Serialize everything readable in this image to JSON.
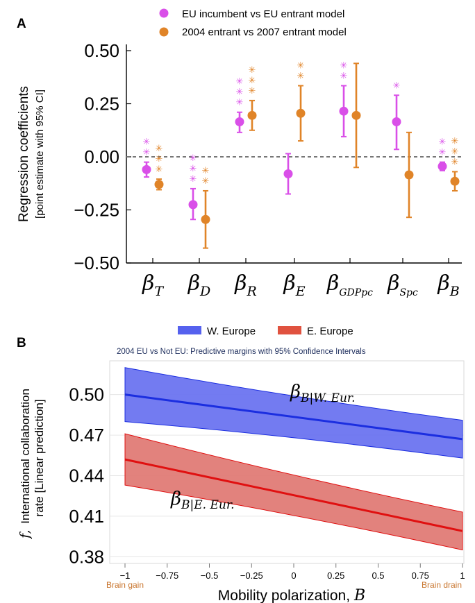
{
  "colors": {
    "magenta": "#d94fe8",
    "orange": "#e08428",
    "blue_band": "#6b74f0",
    "blue_line": "#1b2ee0",
    "red_band": "#e07b76",
    "red_line": "#e01010",
    "brain_label": "#c8742c"
  },
  "chart_data": [
    {
      "type": "scatter",
      "panel": "A",
      "ylabel_line1": "Regression coefficients",
      "ylabel_line2": "[point estimate with 95% CI]",
      "ylim": [
        -0.5,
        0.5
      ],
      "yticks": [
        "0.50",
        "0.25",
        "0.00",
        "−0.25",
        "−0.50"
      ],
      "reference_line": 0,
      "categories": [
        {
          "base": "β",
          "sub": "T"
        },
        {
          "base": "β",
          "sub": "D"
        },
        {
          "base": "β",
          "sub": "R"
        },
        {
          "base": "β",
          "sub": "E"
        },
        {
          "base": "β",
          "sub": "GDPpc"
        },
        {
          "base": "β",
          "sub": "Spc"
        },
        {
          "base": "β",
          "sub": "B"
        }
      ],
      "legend_position": "top",
      "series": [
        {
          "name": "EU incumbent vs EU entrant model",
          "color": "magenta",
          "points": [
            {
              "est": -0.06,
              "lo": -0.095,
              "hi": -0.025,
              "stars": 2
            },
            {
              "est": -0.225,
              "lo": -0.295,
              "hi": -0.15,
              "stars": 3
            },
            {
              "est": 0.165,
              "lo": 0.115,
              "hi": 0.21,
              "stars": 3
            },
            {
              "est": -0.08,
              "lo": -0.175,
              "hi": 0.015,
              "stars": 0
            },
            {
              "est": 0.215,
              "lo": 0.095,
              "hi": 0.335,
              "stars": 2
            },
            {
              "est": 0.165,
              "lo": 0.035,
              "hi": 0.29,
              "stars": 1
            },
            {
              "est": -0.045,
              "lo": -0.065,
              "hi": -0.025,
              "stars": 2
            }
          ]
        },
        {
          "name": "2004 entrant vs 2007 entrant model",
          "color": "orange",
          "points": [
            {
              "est": -0.13,
              "lo": -0.155,
              "hi": -0.105,
              "stars": 3
            },
            {
              "est": -0.295,
              "lo": -0.43,
              "hi": -0.16,
              "stars": 2
            },
            {
              "est": 0.195,
              "lo": 0.125,
              "hi": 0.265,
              "stars": 3
            },
            {
              "est": 0.205,
              "lo": 0.075,
              "hi": 0.335,
              "stars": 2
            },
            {
              "est": 0.195,
              "lo": -0.05,
              "hi": 0.44,
              "stars": 0
            },
            {
              "est": -0.085,
              "lo": -0.285,
              "hi": 0.115,
              "stars": 0
            },
            {
              "est": -0.115,
              "lo": -0.16,
              "hi": -0.07,
              "stars": 3
            }
          ]
        }
      ]
    },
    {
      "type": "area",
      "panel": "B",
      "subtitle": "2004 EU vs Not EU: Predictive margins with 95% Confidence Intervals",
      "xlabel": "Mobility polarization,",
      "xlabel_symbol": "B",
      "ylabel_symbol": "f,",
      "ylabel_line1": "International collaboration",
      "ylabel_line2": "rate [Linear prediction]",
      "xlim": [
        -1,
        1
      ],
      "ylim": [
        0.375,
        0.525
      ],
      "xticks": [
        "−1",
        "−0.75",
        "−0.5",
        "−0.25",
        "0",
        "0.25",
        "0.5",
        "0.75",
        "1"
      ],
      "yticks": [
        "0.50",
        "0.47",
        "0.44",
        "0.41",
        "0.38"
      ],
      "x_end_labels": {
        "left": "Brain gain",
        "right": "Brain drain"
      },
      "legend_position": "top",
      "series": [
        {
          "name": "W. Europe",
          "color": "blue",
          "x": [
            -1,
            1
          ],
          "y": [
            0.5,
            0.467
          ],
          "ci_lower": [
            0.48,
            0.453
          ],
          "ci_upper": [
            0.52,
            0.481
          ],
          "annotation_base": "β",
          "annotation_sub": "B|W. Eur."
        },
        {
          "name": "E. Europe",
          "color": "red",
          "x": [
            -1,
            1
          ],
          "y": [
            0.452,
            0.399
          ],
          "ci_lower": [
            0.433,
            0.385
          ],
          "ci_upper": [
            0.471,
            0.413
          ],
          "annotation_base": "β",
          "annotation_sub": "B|E. Eur."
        }
      ]
    }
  ]
}
